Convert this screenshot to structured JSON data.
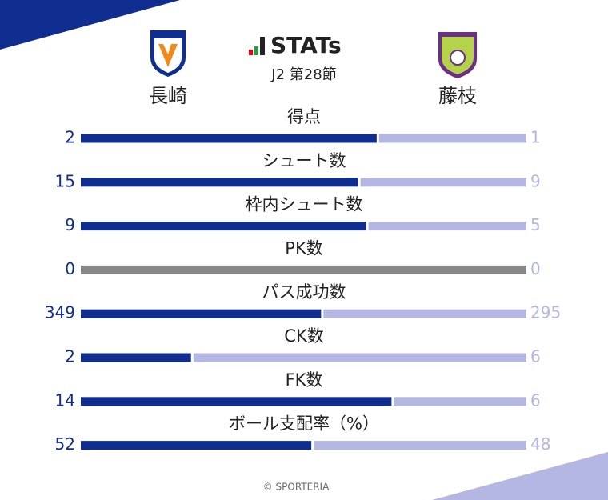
{
  "chart_data": {
    "type": "comparison-bar",
    "title": "STATs",
    "subtitle": "J2 第28節",
    "footer": "© SPORTERIA",
    "categories": [
      "得点",
      "シュート数",
      "枠内シュート数",
      "PK数",
      "パス成功数",
      "CK数",
      "FK数",
      "ボール支配率（%）"
    ],
    "series": [
      {
        "name": "長崎",
        "color": "#0f2e8f",
        "values": [
          2,
          15,
          9,
          0,
          349,
          2,
          14,
          52
        ]
      },
      {
        "name": "藤枝",
        "color": "#b4b7e1",
        "values": [
          1,
          9,
          5,
          0,
          295,
          6,
          6,
          48
        ]
      }
    ],
    "empty_color": "#888888"
  }
}
